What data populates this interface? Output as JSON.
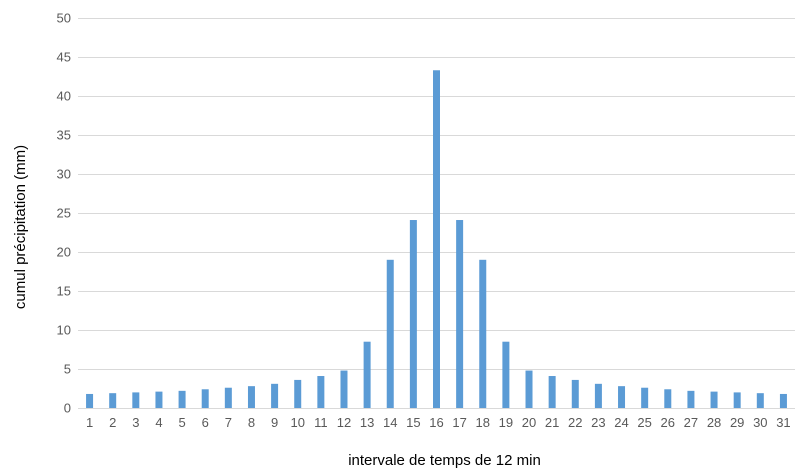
{
  "chart_data": {
    "type": "bar",
    "title": "",
    "xlabel": "intervale de temps de 12 min",
    "ylabel": "cumul précipitation (mm)",
    "ylim": [
      0,
      50
    ],
    "yticks": [
      "0",
      "5",
      "10",
      "15",
      "20",
      "25",
      "30",
      "35",
      "40",
      "45",
      "50"
    ],
    "grid": true,
    "legend": "none",
    "bar_color": "#5b9bd5",
    "grid_color": "#d9d9d9",
    "categories": [
      "1",
      "2",
      "3",
      "4",
      "5",
      "6",
      "7",
      "8",
      "9",
      "10",
      "11",
      "12",
      "13",
      "14",
      "15",
      "16",
      "17",
      "18",
      "19",
      "20",
      "21",
      "22",
      "23",
      "24",
      "25",
      "26",
      "27",
      "28",
      "29",
      "30",
      "31"
    ],
    "values": [
      1.8,
      1.9,
      2.0,
      2.1,
      2.2,
      2.4,
      2.6,
      2.8,
      3.1,
      3.6,
      4.1,
      4.8,
      8.5,
      19.0,
      24.1,
      43.3,
      24.1,
      19.0,
      8.5,
      4.8,
      4.1,
      3.6,
      3.1,
      2.8,
      2.6,
      2.4,
      2.2,
      2.1,
      2.0,
      1.9,
      1.8
    ]
  }
}
